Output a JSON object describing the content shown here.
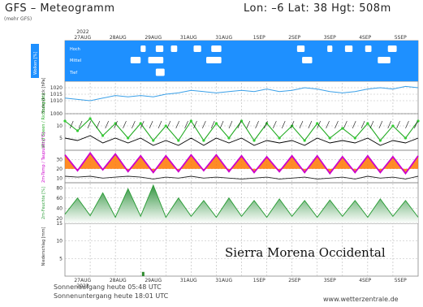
{
  "header": {
    "title": "GFS  –  Meteogramm",
    "location": "Lon:  –6  Lat:  38  Hgt:  508m",
    "run": "(mehr GFS)"
  },
  "footer": {
    "sunrise": "Sonnenaufgang heute 05:48 UTC",
    "sunset": "Sonnenuntergang heute 18:01 UTC",
    "website": "www.wetterzentrale.de"
  },
  "overlay_label": "Sierra Morena Occidental",
  "colors": {
    "sky_blue": "#1e90ff",
    "pressure_line": "#3aa0e8",
    "wind_green": "#22aa22",
    "temp_max": "#cc00cc",
    "temp_fill": "#ff7700",
    "rh_green": "#2e9e3a",
    "grid": "#b8b8b8"
  },
  "chart_data": [
    {
      "type": "line",
      "panel": "clouds",
      "ylabel": "Wolken [%]",
      "rows": [
        "Hoch",
        "Mittel",
        "Tief"
      ],
      "blocks": [
        {
          "row": "Hoch",
          "day": 3.0,
          "len": 0.2
        },
        {
          "row": "Hoch",
          "day": 3.6,
          "len": 0.3
        },
        {
          "row": "Hoch",
          "day": 4.2,
          "len": 0.25
        },
        {
          "row": "Hoch",
          "day": 5.1,
          "len": 0.3
        },
        {
          "row": "Hoch",
          "day": 5.8,
          "len": 0.4
        },
        {
          "row": "Hoch",
          "day": 9.2,
          "len": 0.3
        },
        {
          "row": "Hoch",
          "day": 10.4,
          "len": 0.2
        },
        {
          "row": "Hoch",
          "day": 11.1,
          "len": 0.3
        },
        {
          "row": "Hoch",
          "day": 11.9,
          "len": 0.25
        },
        {
          "row": "Hoch",
          "day": 12.8,
          "len": 0.35
        },
        {
          "row": "Mittel",
          "day": 2.6,
          "len": 0.4
        },
        {
          "row": "Mittel",
          "day": 3.3,
          "len": 0.6
        },
        {
          "row": "Mittel",
          "day": 5.6,
          "len": 0.6
        },
        {
          "row": "Mittel",
          "day": 9.4,
          "len": 0.4
        },
        {
          "row": "Mittel",
          "day": 12.4,
          "len": 0.5
        },
        {
          "row": "Tief",
          "day": 3.6,
          "len": 0.35
        }
      ]
    },
    {
      "type": "line",
      "panel": "pressure",
      "ylabel": "Bodendruck [hPa]",
      "yticks": [
        1000,
        1010,
        1015,
        1020
      ],
      "ylim": [
        1000,
        1025
      ],
      "x": [
        0,
        0.5,
        1,
        1.5,
        2,
        2.5,
        3,
        3.5,
        4,
        4.5,
        5,
        5.5,
        6,
        6.5,
        7,
        7.5,
        8,
        8.5,
        9,
        9.5,
        10,
        10.5,
        11,
        11.5,
        12,
        12.5,
        13,
        13.5,
        14
      ],
      "values": [
        1012,
        1011,
        1010,
        1012,
        1014,
        1013,
        1014,
        1013,
        1015,
        1016,
        1018,
        1017,
        1016,
        1017,
        1018,
        1017,
        1019,
        1017,
        1018,
        1020,
        1019,
        1017,
        1016,
        1017,
        1019,
        1020,
        1019,
        1021,
        1020
      ]
    },
    {
      "type": "line",
      "panel": "wind",
      "ylabel": "Wind Boeen / Richtung [kt]",
      "yticks": [
        5,
        10
      ],
      "ylim": [
        0,
        15
      ],
      "x": [
        0,
        0.5,
        1,
        1.5,
        2,
        2.5,
        3,
        3.5,
        4,
        4.5,
        5,
        5.5,
        6,
        6.5,
        7,
        7.5,
        8,
        8.5,
        9,
        9.5,
        10,
        10.5,
        11,
        11.5,
        12,
        12.5,
        13,
        13.5,
        14
      ],
      "gusts": [
        12,
        8,
        13,
        6,
        11,
        5,
        11,
        4,
        10,
        4,
        12,
        4,
        11,
        5,
        12,
        4,
        11,
        5,
        10,
        4,
        11,
        5,
        9,
        5,
        11,
        4,
        10,
        5,
        12
      ],
      "mean": [
        5,
        4,
        6,
        3,
        5,
        3,
        5,
        2,
        4,
        2,
        5,
        2,
        5,
        3,
        5,
        2,
        4,
        3,
        4,
        2,
        5,
        3,
        4,
        3,
        5,
        2,
        4,
        3,
        5
      ]
    },
    {
      "type": "area",
      "panel": "temperature",
      "ylabel": "2m-Temp / Taupunkt [°C]",
      "yticks": [
        10,
        20,
        30
      ],
      "ylim": [
        5,
        40
      ],
      "x": [
        0,
        0.5,
        1,
        1.5,
        2,
        2.5,
        3,
        3.5,
        4,
        4.5,
        5,
        5.5,
        6,
        6.5,
        7,
        7.5,
        8,
        8.5,
        9,
        9.5,
        10,
        10.5,
        11,
        11.5,
        12,
        12.5,
        13,
        13.5,
        14
      ],
      "temp": [
        35,
        18,
        37,
        19,
        36,
        17,
        34,
        16,
        34,
        17,
        35,
        18,
        35,
        17,
        34,
        16,
        33,
        17,
        34,
        16,
        34,
        15,
        33,
        16,
        34,
        16,
        33,
        15,
        34
      ],
      "dewpoint": [
        12,
        11,
        12,
        10,
        11,
        12,
        11,
        9,
        11,
        10,
        12,
        10,
        11,
        10,
        9,
        10,
        11,
        9,
        10,
        11,
        9,
        10,
        11,
        9,
        12,
        10,
        11,
        9,
        12
      ]
    },
    {
      "type": "area",
      "panel": "humidity",
      "ylabel": "2m-Feuchte [%]",
      "yticks": [
        20,
        40,
        60,
        80
      ],
      "ylim": [
        10,
        90
      ],
      "x": [
        0,
        0.5,
        1,
        1.5,
        2,
        2.5,
        3,
        3.5,
        4,
        4.5,
        5,
        5.5,
        6,
        6.5,
        7,
        7.5,
        8,
        8.5,
        9,
        9.5,
        10,
        10.5,
        11,
        11.5,
        12,
        12.5,
        13,
        13.5,
        14
      ],
      "values": [
        28,
        60,
        25,
        70,
        22,
        78,
        24,
        85,
        22,
        60,
        24,
        55,
        22,
        60,
        24,
        55,
        22,
        58,
        24,
        55,
        22,
        56,
        24,
        55,
        22,
        58,
        24,
        55,
        22
      ]
    },
    {
      "type": "bar",
      "panel": "precipitation",
      "ylabel": "Niederschlag [mm]",
      "yticks": [
        5,
        10,
        15
      ],
      "ylim": [
        0,
        15
      ],
      "x": [
        3.1
      ],
      "values": [
        1.2
      ]
    }
  ],
  "axis": {
    "top_year": "2022",
    "bottom_year": "2022",
    "dates": [
      "27AUG",
      "28AUG",
      "29AUG",
      "31AUG",
      "31AUG",
      "1SEP",
      "2SEP",
      "3SEP",
      "4SEP",
      "5SEP"
    ]
  }
}
